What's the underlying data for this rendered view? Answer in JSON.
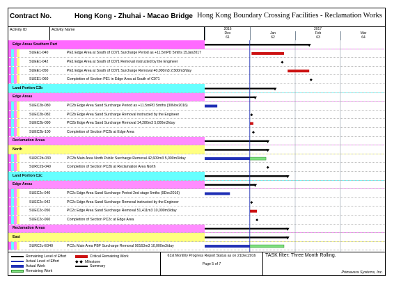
{
  "title": {
    "contract_label": "Contract No.",
    "project": "Hong Kong - Zhuhai - Macao Bridge",
    "facility": "Hong Kong Boundary Crossing Facilities - Reclamation Works"
  },
  "headers": {
    "activity_id": "Activity ID",
    "activity_name": "Activity Name"
  },
  "timescale": {
    "years": [
      {
        "label": "2016"
      },
      {
        "label": "2017"
      }
    ],
    "months": [
      {
        "label": "Dec"
      },
      {
        "label": "Jan"
      },
      {
        "label": "Feb"
      },
      {
        "label": "Mar"
      }
    ],
    "weeks": [
      {
        "label": "61"
      },
      {
        "label": "62"
      },
      {
        "label": "63"
      },
      {
        "label": "64"
      }
    ]
  },
  "rows": [
    {
      "kind": "wbs",
      "level": 1,
      "id": "Edge Areas Southern Part",
      "summary": [
        0.0,
        0.58
      ]
    },
    {
      "kind": "act",
      "id": "SUEE1-040",
      "name": "PE1 Edge Area at South of C071 Surcharge Period as +11.5mPD 5mths 15Jan2017",
      "bars": [
        {
          "type": "critical",
          "start": 0.26,
          "end": 0.44
        }
      ]
    },
    {
      "kind": "act",
      "id": "SUEE1-042",
      "name": "PE1 Edge Area at South of C071 Removal instructed by the Engineer",
      "milestone": 0.43
    },
    {
      "kind": "act",
      "id": "SUEE1-050",
      "name": "PE1 Edge Area at South of C071 Surcharge Removal 40,000m3 2,500m3/day",
      "bars": [
        {
          "type": "critical",
          "start": 0.46,
          "end": 0.58
        }
      ]
    },
    {
      "kind": "act",
      "id": "SUEE1-060",
      "name": "Completion of Section PE1 in Edge Area at South of C071",
      "milestone": 0.59
    },
    {
      "kind": "wbs",
      "level": 2,
      "id": "Land Portion C2b",
      "summary": [
        0.0,
        0.39
      ]
    },
    {
      "kind": "wbs",
      "level": 3,
      "id": "Edge Areas",
      "summary": [
        0.0,
        0.28
      ]
    },
    {
      "kind": "act",
      "id": "SUEC2b-080",
      "name": "PC2b Edge Area Sand Surcharge Period as +11.5mPD 5mths (30Nov2016)",
      "bars": [
        {
          "type": "actual",
          "start": 0.0,
          "end": 0.07
        }
      ]
    },
    {
      "kind": "act",
      "id": "SUEC2b-082",
      "name": "PC2b Edge Area Sand Surcharge Removal instructed by the Engineer",
      "milestone": 0.26
    },
    {
      "kind": "act",
      "id": "SUEC2b-090",
      "name": "PC2b Edge Area Sand Surcharge Removal 14,280m3 5,000m3/day",
      "bars": [
        {
          "type": "critical",
          "start": 0.25,
          "end": 0.27
        }
      ]
    },
    {
      "kind": "act",
      "id": "SUEC2b-100",
      "name": "Completion of Section PC2b at Edge Area",
      "milestone": 0.27
    },
    {
      "kind": "wbs",
      "level": 3,
      "id": "Reclamation Areas",
      "summary": [
        0.0,
        0.35
      ]
    },
    {
      "kind": "wbs",
      "level": 4,
      "id": "North",
      "summary": [
        0.0,
        0.35
      ]
    },
    {
      "kind": "act",
      "id": "SURC2b-030",
      "name": "PC2b Main Area North Public Surcharge Removal 42,609m3 5,000m3/day",
      "bars": [
        {
          "type": "actual",
          "start": 0.0,
          "end": 0.25
        },
        {
          "type": "remaining",
          "start": 0.25,
          "end": 0.34
        }
      ]
    },
    {
      "kind": "act",
      "id": "SURC2b-040",
      "name": "Completion of Section PC2b at Reclamation Area North",
      "milestone": 0.35
    },
    {
      "kind": "wbs",
      "level": 2,
      "id": "Land Portion C2c",
      "summary": [
        0.0,
        0.46
      ]
    },
    {
      "kind": "wbs",
      "level": 3,
      "id": "Edge Areas",
      "summary": [
        0.0,
        0.28
      ]
    },
    {
      "kind": "act",
      "id": "SUEC2c-040",
      "name": "PC2c Edge Area Sand Surcharge Period 2nd stage 5mths (9Dec2016)",
      "bars": [
        {
          "type": "actual",
          "start": 0.0,
          "end": 0.14
        }
      ]
    },
    {
      "kind": "act",
      "id": "SUEC2c-042",
      "name": "PC2c Edge Area Sand Surcharge Removal instructed by the Engineer",
      "milestone": 0.26
    },
    {
      "kind": "act",
      "id": "SUEC2c-050",
      "name": "PC2c Edge Area Sand Surcharge Removal 51,411m3 10,000m3/day",
      "bars": [
        {
          "type": "critical",
          "start": 0.25,
          "end": 0.29
        }
      ]
    },
    {
      "kind": "act",
      "id": "SUEC2c-060",
      "name": "Completion of Section PC2c at Edge Area",
      "milestone": 0.29
    },
    {
      "kind": "wbs",
      "level": 3,
      "id": "Reclamation Areas",
      "summary": [
        0.0,
        0.46
      ]
    },
    {
      "kind": "wbs",
      "level": 4,
      "id": "East",
      "summary": [
        0.0,
        0.46
      ]
    },
    {
      "kind": "act",
      "id": "SURC2c-E040",
      "name": "PC2c Main Area PBF Surcharge Removal 90163m3 10,000m3/day",
      "bars": [
        {
          "type": "actual",
          "start": 0.0,
          "end": 0.25
        },
        {
          "type": "remaining",
          "start": 0.25,
          "end": 0.44
        }
      ]
    }
  ],
  "legend": {
    "remaining_level": "Remaining Level of Effort",
    "actual_level": "Actual Level of Effort",
    "actual_work": "Actual Work",
    "remaining_work": "Remaining Work",
    "critical_remaining": "Critical Remaining Work",
    "milestone": "Milestone",
    "summary": "Summary"
  },
  "footer": {
    "report": "61st Monthly Progress Report Status as on 21Dec2016",
    "page": "Page 5 of 7",
    "task_filter": "TASK filter: Three Month Rolling.",
    "vendor": "Primavera Systems, Inc."
  },
  "colors": {
    "critical": "#cc1111",
    "actual": "#1f2fb5",
    "remaining": "#7fe07f",
    "summary": "#000000",
    "datadate": "#1f2fb5"
  },
  "data_date_fraction": 0.25
}
